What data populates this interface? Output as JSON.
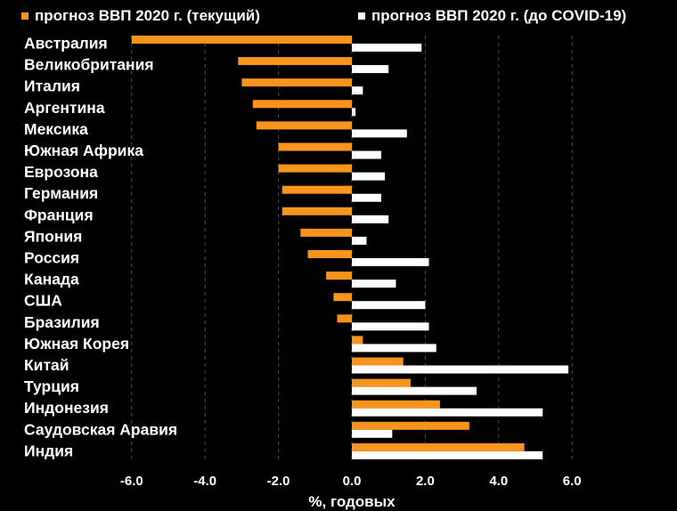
{
  "chart_data": {
    "type": "bar",
    "orientation": "horizontal",
    "title": "",
    "xlabel": "%, годовых",
    "ylabel": "",
    "xlim": [
      -6.7,
      6.7
    ],
    "xticks": [
      -6,
      -4,
      -2,
      0,
      2,
      4,
      6
    ],
    "xtick_labels": [
      "-6.0",
      "-4.0",
      "-2.0",
      "0.0",
      "2.0",
      "4.0",
      "6.0"
    ],
    "grid": true,
    "legend_position": "top",
    "categories": [
      "Австралия",
      "Великобритания",
      "Италия",
      "Аргентина",
      "Мексика",
      "Южная Африка",
      "Еврозона",
      "Германия",
      "Франция",
      "Япония",
      "Россия",
      "Канада",
      "США",
      "Бразилия",
      "Южная Корея",
      "Китай",
      "Турция",
      "Индонезия",
      "Саудовская Аравия",
      "Индия"
    ],
    "series": [
      {
        "name": "прогноз ВВП 2020 г. (текущий)",
        "color": "#F7941D",
        "values": [
          -6.0,
          -3.1,
          -3.0,
          -2.7,
          -2.6,
          -2.0,
          -2.0,
          -1.9,
          -1.9,
          -1.4,
          -1.2,
          -0.7,
          -0.5,
          -0.4,
          0.3,
          1.4,
          1.6,
          2.4,
          3.2,
          4.7
        ]
      },
      {
        "name": "прогноз ВВП 2020 г. (до COVID-19)",
        "color": "#FFFFFF",
        "values": [
          1.9,
          1.0,
          0.3,
          0.1,
          1.5,
          0.8,
          0.9,
          0.8,
          1.0,
          0.4,
          2.1,
          1.2,
          2.0,
          2.1,
          2.3,
          5.9,
          3.4,
          5.2,
          1.1,
          5.2
        ]
      }
    ]
  }
}
